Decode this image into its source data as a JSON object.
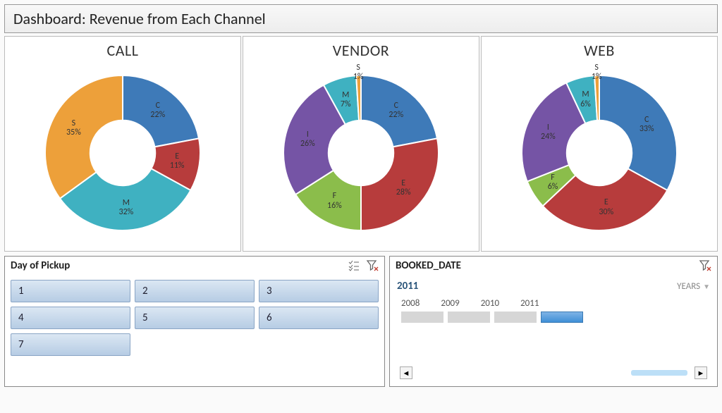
{
  "title": "Dashboard: Revenue from Each Channel",
  "background_color": "#fafafa",
  "panel_border_color": "#bbbbbb",
  "charts": [
    {
      "title": "CALL",
      "type": "donut",
      "inner_radius_pct": 42,
      "slices": [
        {
          "label": "C",
          "value": 22,
          "color": "#3e7ab8"
        },
        {
          "label": "E",
          "value": 11,
          "color": "#b73c3c"
        },
        {
          "label": "M",
          "value": 32,
          "color": "#3fb1c1"
        },
        {
          "label": "S",
          "value": 35,
          "color": "#eda03a"
        }
      ],
      "label_fontsize": 12,
      "label_color": "#333333"
    },
    {
      "title": "VENDOR",
      "type": "donut",
      "inner_radius_pct": 42,
      "slices": [
        {
          "label": "C",
          "value": 22,
          "color": "#3e7ab8"
        },
        {
          "label": "E",
          "value": 28,
          "color": "#b73c3c"
        },
        {
          "label": "F",
          "value": 16,
          "color": "#8bbd4b"
        },
        {
          "label": "I",
          "value": 26,
          "color": "#7554a5"
        },
        {
          "label": "M",
          "value": 7,
          "color": "#3fb1c1"
        },
        {
          "label": "S",
          "value": 1,
          "color": "#eda03a"
        }
      ],
      "label_fontsize": 12,
      "label_color": "#333333"
    },
    {
      "title": "WEB",
      "type": "donut",
      "inner_radius_pct": 42,
      "slices": [
        {
          "label": "C",
          "value": 33,
          "color": "#3e7ab8"
        },
        {
          "label": "E",
          "value": 30,
          "color": "#b73c3c"
        },
        {
          "label": "F",
          "value": 6,
          "color": "#8bbd4b"
        },
        {
          "label": "I",
          "value": 24,
          "color": "#7554a5"
        },
        {
          "label": "M",
          "value": 6,
          "color": "#3fb1c1"
        },
        {
          "label": "S",
          "value": 1,
          "color": "#eda03a"
        }
      ],
      "label_fontsize": 12,
      "label_color": "#333333"
    }
  ],
  "day_slicer": {
    "title": "Day of Pickup",
    "buttons": [
      "1",
      "2",
      "3",
      "4",
      "5",
      "6",
      "7"
    ],
    "button_bg": "#c8dbef",
    "button_border": "#8aa5c5"
  },
  "date_slicer": {
    "title": "BOOKED_DATE",
    "selected_label": "2011",
    "period_label": "YEARS",
    "years": [
      "2008",
      "2009",
      "2010",
      "2011"
    ],
    "selected_year_index": 3,
    "bar_color": "#d6d6d6",
    "bar_selected_color": "#5b9bd5"
  }
}
